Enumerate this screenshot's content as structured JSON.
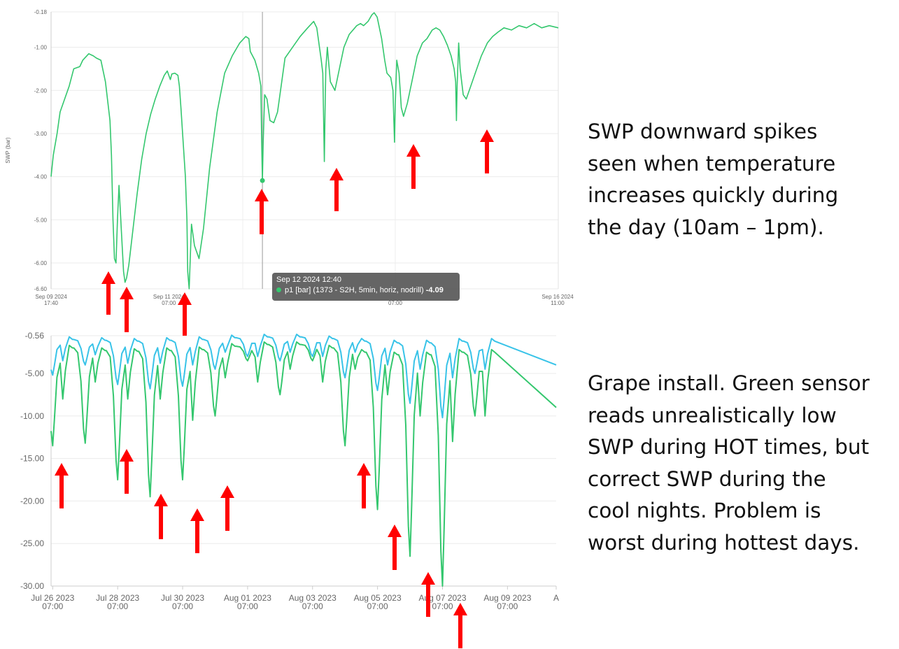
{
  "notes": {
    "top": "SWP downward spikes\nseen when temperature\nincreases quickly during\nthe day (10am – 1pm).",
    "bottom": "Grape install. Green sensor\nreads unrealistically low\nSWP during HOT times, but\ncorrect SWP during the\ncool nights. Problem is\nworst during hottest days."
  },
  "colors": {
    "green": "#34c76e",
    "blue": "#38c3e8",
    "arrow": "#ff0000",
    "grid": "#ebebeb",
    "axis_text": "#666666"
  },
  "tooltip": {
    "time": "Sep 12 2024 12:40",
    "series": "p1 [bar] (1373 - S2H, 5min, horiz, nodrill)",
    "value": "-4.09"
  },
  "chart_data": [
    {
      "type": "line",
      "ylabel": "SWP (bar)",
      "ylim": [
        -6.6,
        -0.18
      ],
      "y_ticks": [
        "-0.18",
        "-1.00",
        "-2.00",
        "-3.00",
        "-4.00",
        "-5.00",
        "-6.00",
        "-6.60"
      ],
      "x_ticks": [
        {
          "line1": "Sep 09 2024",
          "line2": "17:40"
        },
        {
          "line1": "Sep 11 2024",
          "line2": "07:00"
        },
        {
          "line1": "",
          "line2": "07:00"
        },
        {
          "line1": "Sep 16 2024",
          "line2": "11:00"
        }
      ],
      "x_ticks_at_day": [
        0,
        1.56,
        4.56,
        6.72
      ],
      "xlim_days": [
        0,
        6.72
      ],
      "grid": true,
      "crosshair_day": 2.8,
      "highlight_point": {
        "day": 2.8,
        "value": -4.09
      },
      "series": [
        {
          "color": "green",
          "points": [
            [
              0.0,
              -4.0
            ],
            [
              0.03,
              -3.5
            ],
            [
              0.08,
              -3.0
            ],
            [
              0.12,
              -2.5
            ],
            [
              0.18,
              -2.2
            ],
            [
              0.24,
              -1.9
            ],
            [
              0.3,
              -1.5
            ],
            [
              0.38,
              -1.45
            ],
            [
              0.42,
              -1.3
            ],
            [
              0.5,
              -1.15
            ],
            [
              0.56,
              -1.2
            ],
            [
              0.6,
              -1.25
            ],
            [
              0.66,
              -1.3
            ],
            [
              0.72,
              -1.8
            ],
            [
              0.78,
              -2.7
            ],
            [
              0.8,
              -3.5
            ],
            [
              0.82,
              -5.0
            ],
            [
              0.84,
              -5.9
            ],
            [
              0.86,
              -6.0
            ],
            [
              0.88,
              -5.0
            ],
            [
              0.9,
              -4.2
            ],
            [
              0.93,
              -5.2
            ],
            [
              0.96,
              -6.2
            ],
            [
              0.98,
              -6.45
            ],
            [
              1.0,
              -6.35
            ],
            [
              1.03,
              -6.05
            ],
            [
              1.08,
              -5.3
            ],
            [
              1.14,
              -4.4
            ],
            [
              1.2,
              -3.6
            ],
            [
              1.26,
              -3.0
            ],
            [
              1.32,
              -2.55
            ],
            [
              1.38,
              -2.2
            ],
            [
              1.44,
              -1.9
            ],
            [
              1.5,
              -1.65
            ],
            [
              1.54,
              -1.55
            ],
            [
              1.58,
              -1.75
            ],
            [
              1.6,
              -1.62
            ],
            [
              1.64,
              -1.6
            ],
            [
              1.68,
              -1.65
            ],
            [
              1.7,
              -1.9
            ],
            [
              1.72,
              -2.4
            ],
            [
              1.75,
              -3.2
            ],
            [
              1.78,
              -4.0
            ],
            [
              1.8,
              -5.0
            ],
            [
              1.81,
              -6.2
            ],
            [
              1.83,
              -6.6
            ],
            [
              1.86,
              -5.1
            ],
            [
              1.9,
              -5.6
            ],
            [
              1.96,
              -5.9
            ],
            [
              2.02,
              -5.2
            ],
            [
              2.1,
              -3.8
            ],
            [
              2.2,
              -2.5
            ],
            [
              2.3,
              -1.6
            ],
            [
              2.4,
              -1.2
            ],
            [
              2.5,
              -0.9
            ],
            [
              2.58,
              -0.75
            ],
            [
              2.62,
              -0.8
            ],
            [
              2.64,
              -1.1
            ],
            [
              2.7,
              -1.3
            ],
            [
              2.75,
              -1.6
            ],
            [
              2.78,
              -1.9
            ],
            [
              2.79,
              -3.2
            ],
            [
              2.8,
              -4.09
            ],
            [
              2.81,
              -3.2
            ],
            [
              2.83,
              -2.1
            ],
            [
              2.86,
              -2.2
            ],
            [
              2.9,
              -2.7
            ],
            [
              2.95,
              -2.75
            ],
            [
              3.0,
              -2.5
            ],
            [
              3.04,
              -2.0
            ],
            [
              3.1,
              -1.25
            ],
            [
              3.2,
              -1.0
            ],
            [
              3.3,
              -0.75
            ],
            [
              3.4,
              -0.55
            ],
            [
              3.48,
              -0.4
            ],
            [
              3.52,
              -0.55
            ],
            [
              3.58,
              -1.3
            ],
            [
              3.6,
              -1.6
            ],
            [
              3.61,
              -2.6
            ],
            [
              3.62,
              -3.65
            ],
            [
              3.63,
              -2.5
            ],
            [
              3.64,
              -1.5
            ],
            [
              3.66,
              -1.0
            ],
            [
              3.7,
              -1.8
            ],
            [
              3.76,
              -2.0
            ],
            [
              3.82,
              -1.5
            ],
            [
              3.88,
              -1.0
            ],
            [
              3.95,
              -0.7
            ],
            [
              4.05,
              -0.5
            ],
            [
              4.1,
              -0.45
            ],
            [
              4.14,
              -0.5
            ],
            [
              4.2,
              -0.4
            ],
            [
              4.25,
              -0.25
            ],
            [
              4.28,
              -0.2
            ],
            [
              4.32,
              -0.3
            ],
            [
              4.38,
              -0.8
            ],
            [
              4.42,
              -1.3
            ],
            [
              4.45,
              -1.6
            ],
            [
              4.5,
              -1.7
            ],
            [
              4.53,
              -2.0
            ],
            [
              4.55,
              -3.2
            ],
            [
              4.56,
              -2.3
            ],
            [
              4.58,
              -1.3
            ],
            [
              4.61,
              -1.6
            ],
            [
              4.64,
              -2.4
            ],
            [
              4.67,
              -2.6
            ],
            [
              4.72,
              -2.3
            ],
            [
              4.78,
              -1.8
            ],
            [
              4.85,
              -1.2
            ],
            [
              4.92,
              -0.9
            ],
            [
              4.98,
              -0.8
            ],
            [
              5.05,
              -0.6
            ],
            [
              5.1,
              -0.55
            ],
            [
              5.15,
              -0.6
            ],
            [
              5.2,
              -0.75
            ],
            [
              5.25,
              -0.95
            ],
            [
              5.3,
              -1.2
            ],
            [
              5.34,
              -1.5
            ],
            [
              5.36,
              -1.8
            ],
            [
              5.37,
              -2.7
            ],
            [
              5.38,
              -1.9
            ],
            [
              5.4,
              -0.9
            ],
            [
              5.42,
              -1.5
            ],
            [
              5.46,
              -2.1
            ],
            [
              5.5,
              -2.2
            ],
            [
              5.56,
              -1.9
            ],
            [
              5.62,
              -1.6
            ],
            [
              5.7,
              -1.2
            ],
            [
              5.78,
              -0.9
            ],
            [
              5.85,
              -0.75
            ],
            [
              5.92,
              -0.65
            ],
            [
              6.0,
              -0.55
            ],
            [
              6.1,
              -0.6
            ],
            [
              6.2,
              -0.5
            ],
            [
              6.3,
              -0.55
            ],
            [
              6.4,
              -0.45
            ],
            [
              6.5,
              -0.55
            ],
            [
              6.6,
              -0.5
            ],
            [
              6.72,
              -0.55
            ]
          ]
        }
      ]
    },
    {
      "type": "line",
      "ylim": [
        -30.0,
        -0.56
      ],
      "y_ticks": [
        "-0.56",
        "-5.00",
        "-10.00",
        "-15.00",
        "-20.00",
        "-25.00",
        "-30.00"
      ],
      "x_ticks": [
        {
          "line1": "Jul 26 2023",
          "line2": "07:00"
        },
        {
          "line1": "Jul 28 2023",
          "line2": "07:00"
        },
        {
          "line1": "Jul 30 2023",
          "line2": "07:00"
        },
        {
          "line1": "Aug 01 2023",
          "line2": "07:00"
        },
        {
          "line1": "Aug 03 2023",
          "line2": "07:00"
        },
        {
          "line1": "Aug 05 2023",
          "line2": "07:00"
        },
        {
          "line1": "Aug 07 2023",
          "line2": "07:00"
        },
        {
          "line1": "Aug 09 2023",
          "line2": "07:00"
        },
        {
          "line1": "A",
          "line2": ""
        }
      ],
      "x_ticks_at_day": [
        0,
        2,
        4,
        6,
        8,
        10,
        12,
        14,
        15.5
      ],
      "xlim_days": [
        -0.05,
        15.5
      ],
      "grid": true,
      "series": [
        {
          "color": "green",
          "dips": [
            -13.5,
            -13.2,
            -17.5,
            -19.5,
            -17.5,
            -10.0,
            -3.5,
            -7.5,
            -3.5,
            -13.5,
            -21.0,
            -26.5,
            -30.0,
            -10.0
          ],
          "evening_dips": [
            -8.0,
            -6.0,
            -8.0,
            -8.0,
            -10.5,
            -5.5,
            -6.0,
            -4.5,
            -6.0,
            -4.5,
            -7.5,
            -10.0,
            -13.0,
            -10.0
          ],
          "day_peaks": [
            -2.0,
            -2.0,
            -2.3,
            -2.4,
            -2.3,
            -2.2,
            -1.8,
            -1.6,
            -1.6,
            -2.0,
            -2.5,
            -2.8,
            -2.8,
            -2.5
          ],
          "end_value": -9.0
        },
        {
          "color": "blue",
          "dips": [
            -5.2,
            -4.0,
            -6.3,
            -6.8,
            -6.5,
            -4.5,
            -3.0,
            -3.5,
            -3.0,
            -5.5,
            -7.0,
            -8.5,
            -10.2,
            -5.0
          ],
          "evening_dips": [
            -3.5,
            -2.8,
            -3.8,
            -3.8,
            -4.0,
            -2.5,
            -3.0,
            -2.5,
            -3.0,
            -2.5,
            -4.0,
            -4.5,
            -5.5,
            -4.5
          ],
          "day_peaks": [
            -0.9,
            -1.0,
            -1.1,
            -1.2,
            -1.1,
            -1.0,
            -0.8,
            -0.7,
            -0.7,
            -0.9,
            -1.2,
            -1.4,
            -1.4,
            -1.2
          ],
          "end_value": -4.0
        }
      ],
      "dip_day_offset": 0.35
    }
  ]
}
